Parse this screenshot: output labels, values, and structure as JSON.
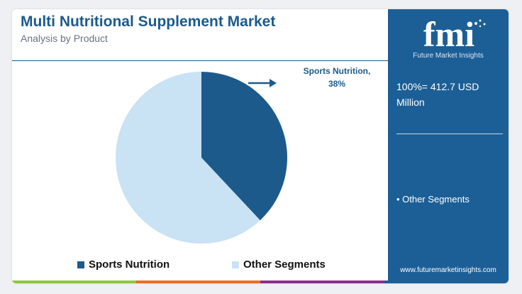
{
  "header": {
    "title": "Multi Nutritional Supplement Market",
    "subtitle": "Analysis by Product"
  },
  "chart_data": {
    "type": "pie",
    "title": "Multi Nutritional Supplement Market",
    "subtitle": "Analysis by Product",
    "slices": [
      {
        "name": "Sports Nutrition",
        "value": 38,
        "color": "#1c5a8c"
      },
      {
        "name": "Other Segments",
        "value": 62,
        "color": "#c9e2f4"
      }
    ],
    "annotation": {
      "line1": "Sports Nutrition,",
      "line2": "38%"
    },
    "legend_position": "bottom"
  },
  "side_panel": {
    "logo_letters": "fmi",
    "logo_caption": "Future Market Insights",
    "total_label": "100%= 412.7 USD Million",
    "segment_item": "• Other Segments",
    "website": "www.futuremarketinsights.com"
  },
  "colors": {
    "brand_blue": "#1c5a8c",
    "panel_blue": "#1c5f96",
    "light_blue": "#c9e2f4",
    "bar_green": "#8dc63f",
    "bar_orange": "#f26b21",
    "bar_purple": "#8b2f8f"
  }
}
